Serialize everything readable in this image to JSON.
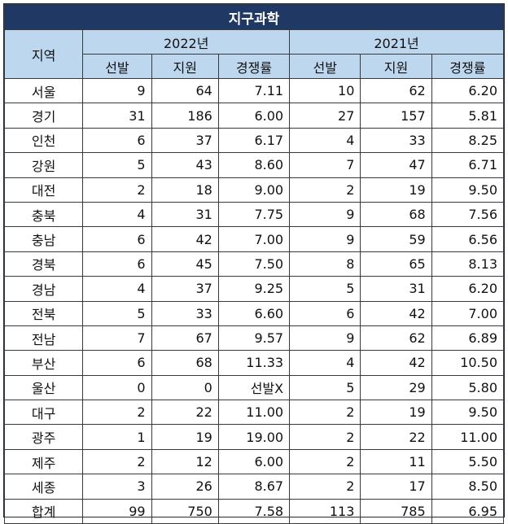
{
  "chart_data": {
    "type": "table",
    "title": "지구과학",
    "region_header": "지역",
    "years": [
      "2022년",
      "2021년"
    ],
    "columns": [
      "선발",
      "지원",
      "경쟁률"
    ],
    "rows": [
      {
        "region": "서울",
        "y2022": [
          "9",
          "64",
          "7.11"
        ],
        "y2021": [
          "10",
          "62",
          "6.20"
        ]
      },
      {
        "region": "경기",
        "y2022": [
          "31",
          "186",
          "6.00"
        ],
        "y2021": [
          "27",
          "157",
          "5.81"
        ]
      },
      {
        "region": "인천",
        "y2022": [
          "6",
          "37",
          "6.17"
        ],
        "y2021": [
          "4",
          "33",
          "8.25"
        ]
      },
      {
        "region": "강원",
        "y2022": [
          "5",
          "43",
          "8.60"
        ],
        "y2021": [
          "7",
          "47",
          "6.71"
        ]
      },
      {
        "region": "대전",
        "y2022": [
          "2",
          "18",
          "9.00"
        ],
        "y2021": [
          "2",
          "19",
          "9.50"
        ]
      },
      {
        "region": "충북",
        "y2022": [
          "4",
          "31",
          "7.75"
        ],
        "y2021": [
          "9",
          "68",
          "7.56"
        ]
      },
      {
        "region": "충남",
        "y2022": [
          "6",
          "42",
          "7.00"
        ],
        "y2021": [
          "9",
          "59",
          "6.56"
        ]
      },
      {
        "region": "경북",
        "y2022": [
          "6",
          "45",
          "7.50"
        ],
        "y2021": [
          "8",
          "65",
          "8.13"
        ]
      },
      {
        "region": "경남",
        "y2022": [
          "4",
          "37",
          "9.25"
        ],
        "y2021": [
          "5",
          "31",
          "6.20"
        ]
      },
      {
        "region": "전북",
        "y2022": [
          "5",
          "33",
          "6.60"
        ],
        "y2021": [
          "6",
          "42",
          "7.00"
        ]
      },
      {
        "region": "전남",
        "y2022": [
          "7",
          "67",
          "9.57"
        ],
        "y2021": [
          "9",
          "62",
          "6.89"
        ]
      },
      {
        "region": "부산",
        "y2022": [
          "6",
          "68",
          "11.33"
        ],
        "y2021": [
          "4",
          "42",
          "10.50"
        ]
      },
      {
        "region": "울산",
        "y2022": [
          "0",
          "0",
          "선발X"
        ],
        "y2021": [
          "5",
          "29",
          "5.80"
        ]
      },
      {
        "region": "대구",
        "y2022": [
          "2",
          "22",
          "11.00"
        ],
        "y2021": [
          "2",
          "19",
          "9.50"
        ]
      },
      {
        "region": "광주",
        "y2022": [
          "1",
          "19",
          "19.00"
        ],
        "y2021": [
          "2",
          "22",
          "11.00"
        ]
      },
      {
        "region": "제주",
        "y2022": [
          "2",
          "12",
          "6.00"
        ],
        "y2021": [
          "2",
          "11",
          "5.50"
        ]
      },
      {
        "region": "세종",
        "y2022": [
          "3",
          "26",
          "8.67"
        ],
        "y2021": [
          "2",
          "17",
          "8.50"
        ]
      },
      {
        "region": "합계",
        "y2022": [
          "99",
          "750",
          "7.58"
        ],
        "y2021": [
          "113",
          "785",
          "6.95"
        ]
      }
    ]
  },
  "colors": {
    "title_bg": "#1f3864",
    "header_bg": "#bdd7ee",
    "border": "#3a3a3a"
  }
}
